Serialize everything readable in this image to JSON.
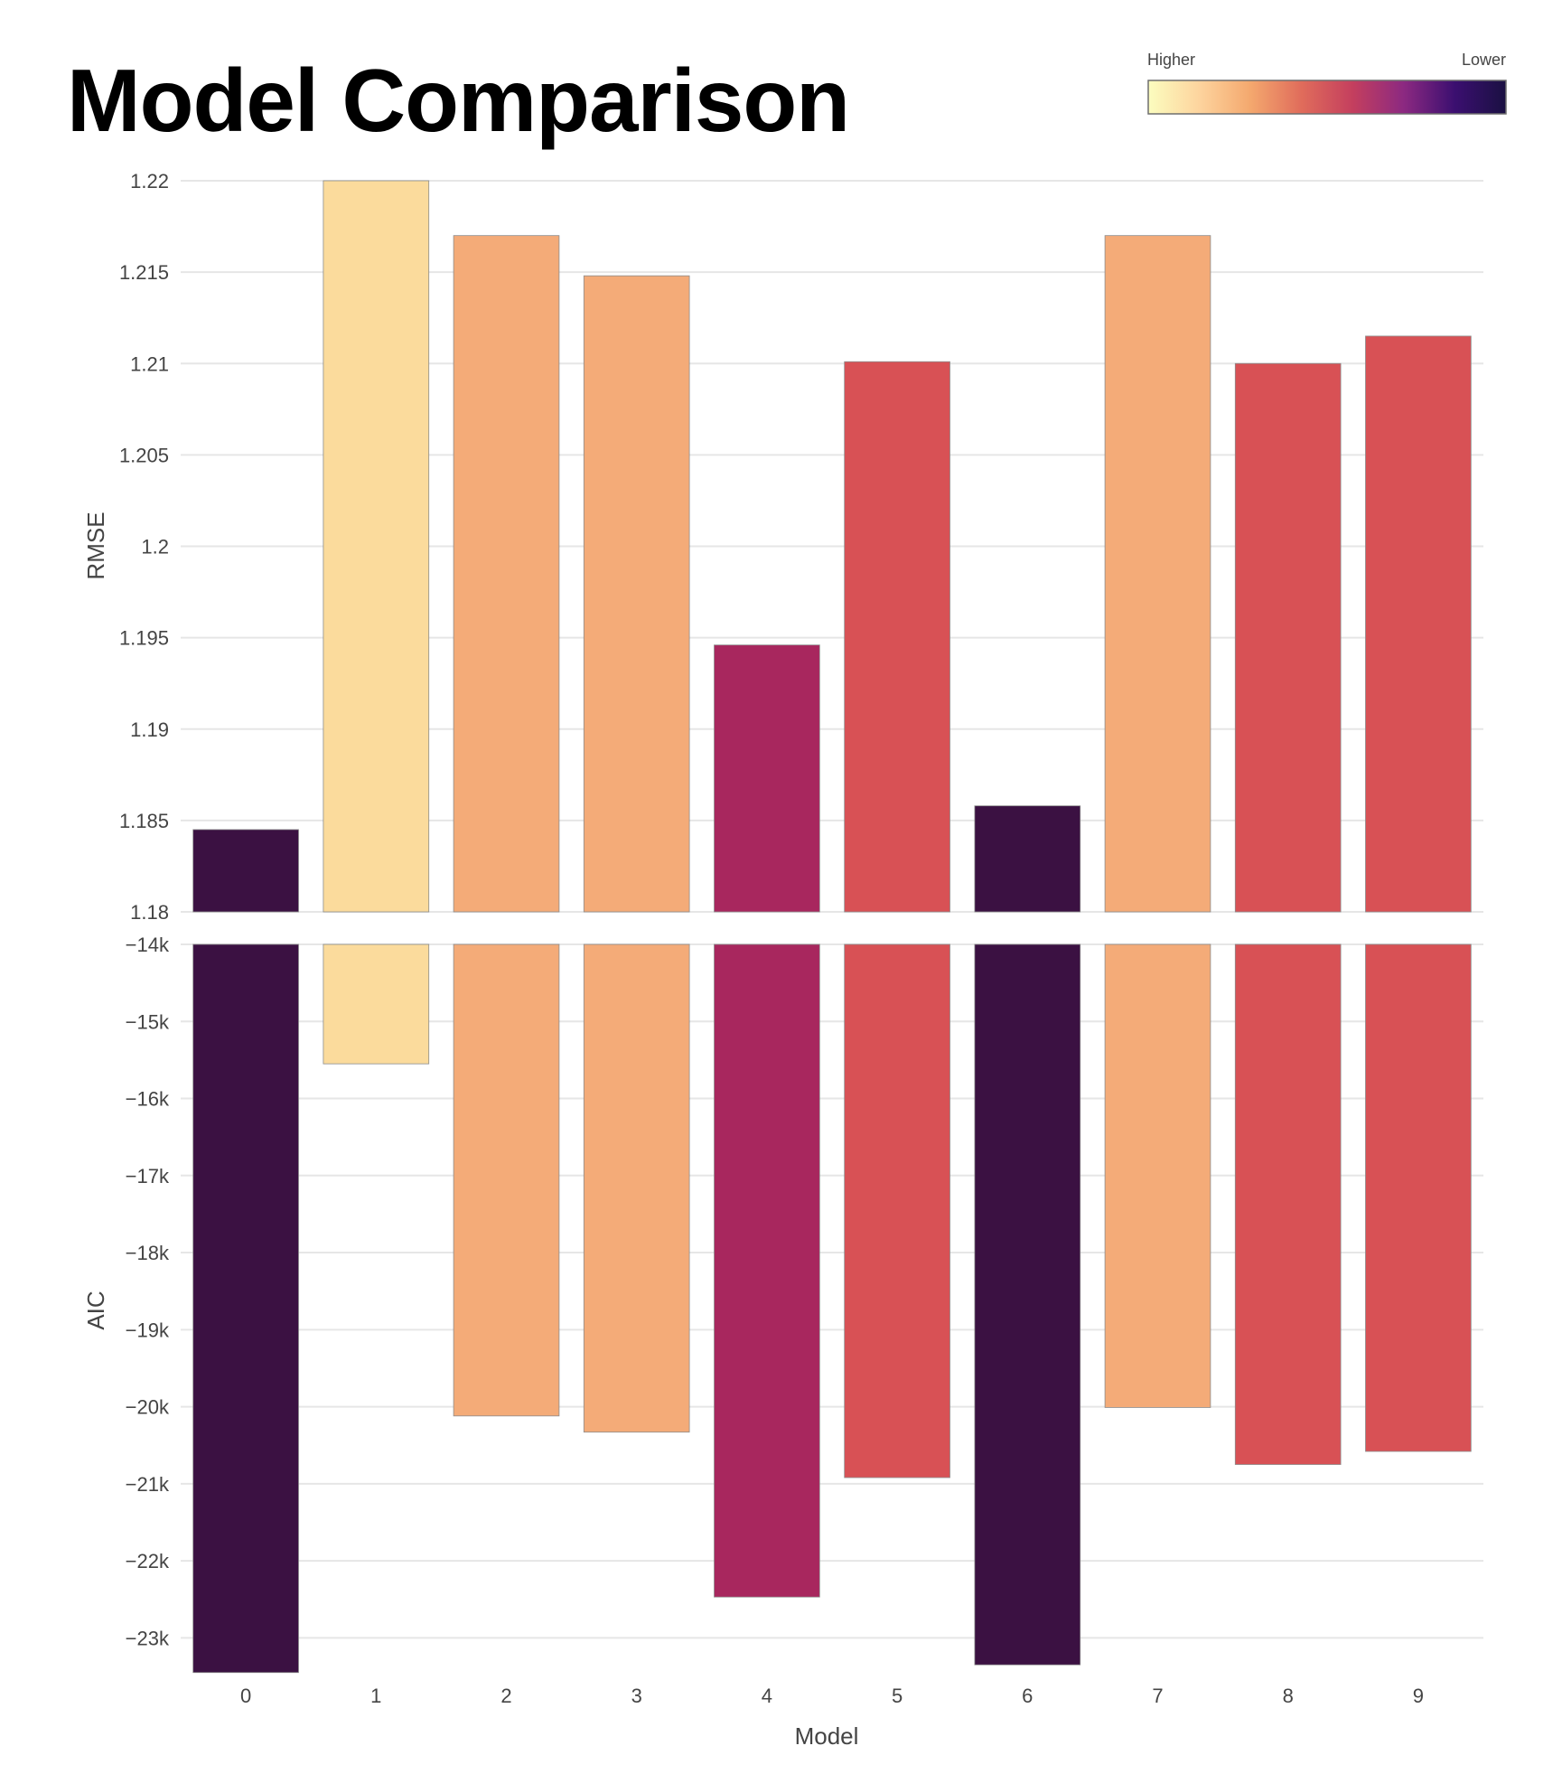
{
  "title": "Model Comparison",
  "colors": {
    "background": "#ffffff",
    "grid": "#e6e6e6",
    "text": "#444444",
    "bar_outline": "#8c8c8c"
  },
  "chart_data": {
    "type": "bar",
    "title": "Model Comparison",
    "xlabel": "Model",
    "categories": [
      "0",
      "1",
      "2",
      "3",
      "4",
      "5",
      "6",
      "7",
      "8",
      "9"
    ],
    "grid": true,
    "colorscale": {
      "name": "magma (reversed)",
      "label_high": "Higher",
      "label_low": "Lower",
      "stops": [
        "#fcfdbf",
        "#fdd49e",
        "#f4a86e",
        "#e06c5b",
        "#c43f5e",
        "#8c2981",
        "#3b0f70",
        "#1a1042"
      ],
      "placement": "top-right"
    },
    "bar_colors": [
      "#3b1142",
      "#fbdb9c",
      "#f4ab78",
      "#f4ab78",
      "#a8275e",
      "#d85155",
      "#3b1142",
      "#f4ab78",
      "#d85155",
      "#d85155"
    ],
    "panels": [
      {
        "ylabel": "RMSE",
        "ylim": [
          1.18,
          1.22
        ],
        "yticks": [
          1.18,
          1.185,
          1.19,
          1.195,
          1.2,
          1.205,
          1.21,
          1.215,
          1.22
        ],
        "ytick_labels": [
          "1.18",
          "1.185",
          "1.19",
          "1.195",
          "1.2",
          "1.205",
          "1.21",
          "1.215",
          "1.22"
        ],
        "values": [
          1.1845,
          1.22,
          1.217,
          1.2148,
          1.1946,
          1.2101,
          1.1858,
          1.217,
          1.21,
          1.2115
        ]
      },
      {
        "ylabel": "AIC",
        "ylim": [
          -23500,
          -14000
        ],
        "yticks": [
          -14000,
          -15000,
          -16000,
          -17000,
          -18000,
          -19000,
          -20000,
          -21000,
          -22000,
          -23000
        ],
        "ytick_labels": [
          "−14k",
          "−15k",
          "−16k",
          "−17k",
          "−18k",
          "−19k",
          "−20k",
          "−21k",
          "−22k",
          "−23k"
        ],
        "values": [
          -23450,
          -15550,
          -20120,
          -20330,
          -22470,
          -20920,
          -23350,
          -20010,
          -20750,
          -20580
        ]
      }
    ]
  }
}
